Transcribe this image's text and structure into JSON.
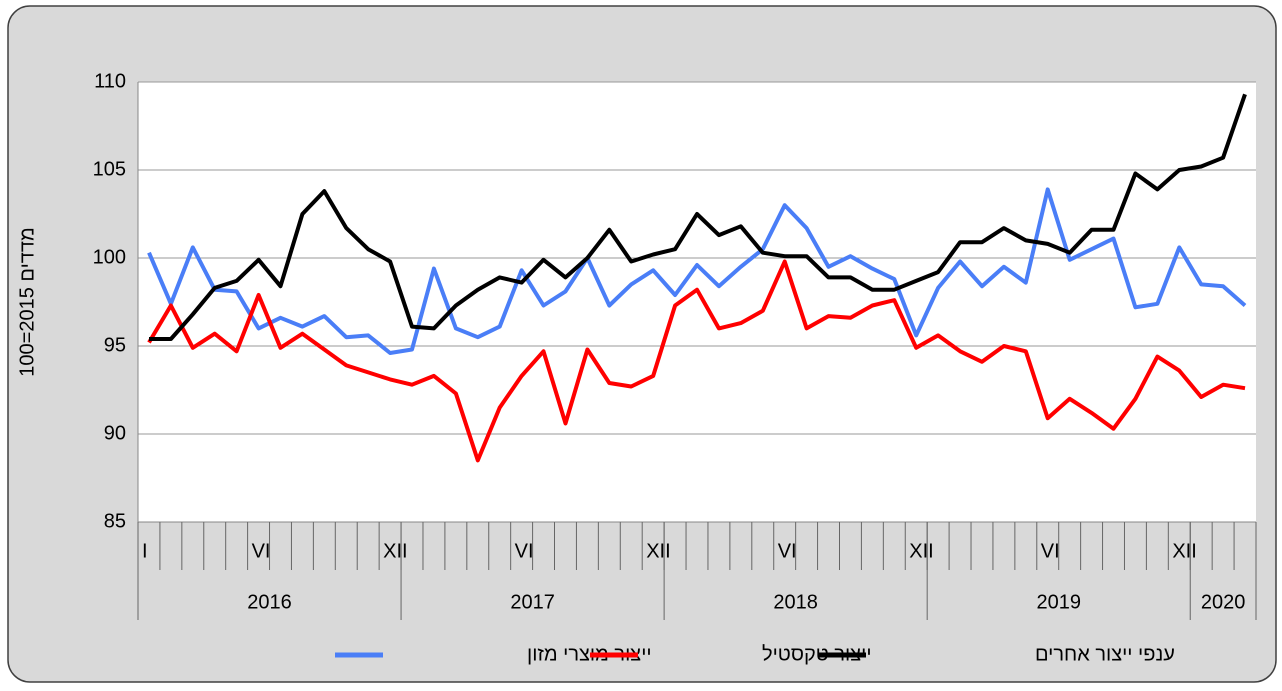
{
  "chart_data": {
    "type": "line",
    "y_label": "מדדים 2015=100",
    "ylim": [
      85,
      110
    ],
    "yticks": [
      85,
      90,
      95,
      100,
      105,
      110
    ],
    "grid": true,
    "categories": [
      "I",
      null,
      null,
      null,
      null,
      "VI",
      null,
      null,
      null,
      null,
      null,
      "XII",
      null,
      null,
      null,
      null,
      null,
      "VI",
      null,
      null,
      null,
      null,
      null,
      "XII",
      null,
      null,
      null,
      null,
      null,
      "VI",
      null,
      null,
      null,
      null,
      null,
      "XII",
      null,
      null,
      null,
      null,
      null,
      "VI",
      null,
      null,
      null,
      null,
      null,
      "XII",
      null,
      null,
      null
    ],
    "groups": [
      {
        "label": "2016",
        "count": 12
      },
      {
        "label": "2017",
        "count": 12
      },
      {
        "label": "2018",
        "count": 12
      },
      {
        "label": "2019",
        "count": 12
      },
      {
        "label": "2020",
        "count": 3
      }
    ],
    "series": [
      {
        "name": "ייצור מוצרי מזון",
        "color": "#4a7ef7",
        "values": [
          100.3,
          97.4,
          100.6,
          98.2,
          98.1,
          96.0,
          96.6,
          96.1,
          96.7,
          95.5,
          95.6,
          94.6,
          94.8,
          99.4,
          96.0,
          95.5,
          96.1,
          99.3,
          97.3,
          98.1,
          100.0,
          97.3,
          98.5,
          99.3,
          97.9,
          99.6,
          98.4,
          99.5,
          100.5,
          103.0,
          101.7,
          99.5,
          100.1,
          99.4,
          98.8,
          95.6,
          98.3,
          99.8,
          98.4,
          99.5,
          98.6,
          103.9,
          99.9,
          100.5,
          101.1,
          97.2,
          97.4,
          100.6,
          98.5,
          98.4,
          97.3
        ]
      },
      {
        "name": "ייצור טקסטיל",
        "color": "#ff0000",
        "values": [
          95.2,
          97.3,
          94.9,
          95.7,
          94.7,
          97.9,
          94.9,
          95.7,
          94.8,
          93.9,
          93.5,
          93.1,
          92.8,
          93.3,
          92.3,
          88.5,
          91.5,
          93.3,
          94.7,
          90.6,
          94.8,
          92.9,
          92.7,
          93.3,
          97.3,
          98.2,
          96.0,
          96.3,
          97.0,
          99.8,
          96.0,
          96.7,
          96.6,
          97.3,
          97.6,
          94.9,
          95.6,
          94.7,
          94.1,
          95.0,
          94.7,
          90.9,
          92.0,
          91.2,
          90.3,
          92.0,
          94.4,
          93.6,
          92.1,
          92.8,
          92.6
        ]
      },
      {
        "name": "ענפי ייצור אחרים",
        "color": "#000000",
        "values": [
          95.4,
          95.4,
          96.8,
          98.3,
          98.7,
          99.9,
          98.4,
          102.5,
          103.8,
          101.7,
          100.5,
          99.8,
          96.1,
          96.0,
          97.3,
          98.2,
          98.9,
          98.6,
          99.9,
          98.9,
          100.0,
          101.6,
          99.8,
          100.2,
          100.5,
          102.5,
          101.3,
          101.8,
          100.3,
          100.1,
          100.1,
          98.9,
          98.9,
          98.2,
          98.2,
          98.7,
          99.2,
          100.9,
          100.9,
          101.7,
          101.0,
          100.8,
          100.3,
          101.6,
          101.6,
          104.8,
          103.9,
          105.0,
          105.2,
          105.7,
          109.3
        ]
      }
    ]
  }
}
